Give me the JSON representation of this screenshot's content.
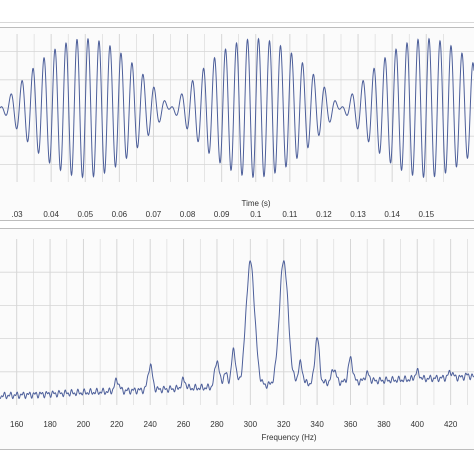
{
  "chart_data": [
    {
      "type": "line",
      "xlabel": "Time (s)",
      "ylabel": "",
      "xlim": [
        0.025,
        0.164
      ],
      "ylim": [
        -1.05,
        1.05
      ],
      "x_ticks": [
        0.03,
        0.04,
        0.05,
        0.06,
        0.07,
        0.08,
        0.09,
        0.1,
        0.11,
        0.12,
        0.13,
        0.14,
        0.15
      ],
      "x_tick_labels": [
        ".03",
        "0.04",
        "0.05",
        "0.06",
        "0.07",
        "0.08",
        "0.09",
        "0.1",
        "0.11",
        "0.12",
        "0.13",
        "0.14",
        "0.15"
      ],
      "grid": true,
      "signal": {
        "description_formula": "beat of two sinusoids",
        "f1_hz": 300,
        "f2_hz": 320,
        "amplitude": 0.82
      }
    },
    {
      "type": "line",
      "xlabel": "Frequency (Hz)",
      "ylabel": "",
      "xlim": [
        150,
        434
      ],
      "ylim": [
        0,
        1
      ],
      "x_ticks": [
        160,
        180,
        200,
        220,
        240,
        260,
        280,
        300,
        320,
        340,
        360,
        380,
        400,
        420
      ],
      "x_tick_labels": [
        "160",
        "180",
        "200",
        "220",
        "240",
        "260",
        "280",
        "300",
        "320",
        "340",
        "360",
        "380",
        "400",
        "420"
      ],
      "grid": true,
      "baseline": {
        "start": 0.055,
        "end": 0.17
      },
      "peaks": [
        {
          "x": 220,
          "y": 0.15
        },
        {
          "x": 240,
          "y": 0.24
        },
        {
          "x": 260,
          "y": 0.15
        },
        {
          "x": 280,
          "y": 0.27
        },
        {
          "x": 285,
          "y": 0.19
        },
        {
          "x": 290,
          "y": 0.33
        },
        {
          "x": 300,
          "y": 0.86
        },
        {
          "x": 320,
          "y": 0.87
        },
        {
          "x": 330,
          "y": 0.25
        },
        {
          "x": 340,
          "y": 0.41
        },
        {
          "x": 350,
          "y": 0.22
        },
        {
          "x": 360,
          "y": 0.28
        },
        {
          "x": 370,
          "y": 0.19
        },
        {
          "x": 400,
          "y": 0.2
        },
        {
          "x": 420,
          "y": 0.2
        },
        {
          "x": 430,
          "y": 0.18
        }
      ]
    }
  ],
  "colors": {
    "line": "#4d5f9a",
    "grid": "#d6d6d6",
    "panel_bg": "#fbfbfb"
  }
}
